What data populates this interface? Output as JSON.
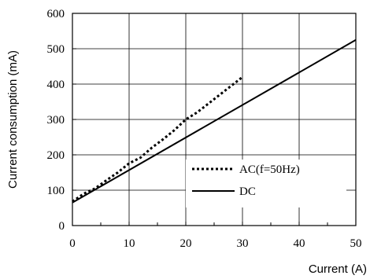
{
  "chart_data": {
    "type": "line",
    "xlabel": "Current (A)",
    "ylabel": "Current consumption (mA)",
    "xlim": [
      0,
      50
    ],
    "ylim": [
      0,
      600
    ],
    "x_ticks": [
      "0",
      "10",
      "20",
      "30",
      "40",
      "50"
    ],
    "y_ticks": [
      "0",
      "100",
      "200",
      "300",
      "400",
      "500",
      "600"
    ],
    "grid": true,
    "legend_position": "lower-right",
    "series": [
      {
        "name": "AC(f=50Hz)",
        "style": "dotted",
        "color": "#000000",
        "x": [
          0,
          2,
          4,
          6,
          8,
          10,
          12,
          14,
          16,
          18,
          20,
          22,
          24,
          26,
          28,
          30
        ],
        "y": [
          68,
          90,
          105,
          128,
          150,
          176,
          192,
          220,
          244,
          270,
          300,
          320,
          345,
          370,
          395,
          420
        ]
      },
      {
        "name": "DC",
        "style": "solid",
        "color": "#000000",
        "x": [
          0,
          50
        ],
        "y": [
          65,
          525
        ]
      }
    ]
  }
}
